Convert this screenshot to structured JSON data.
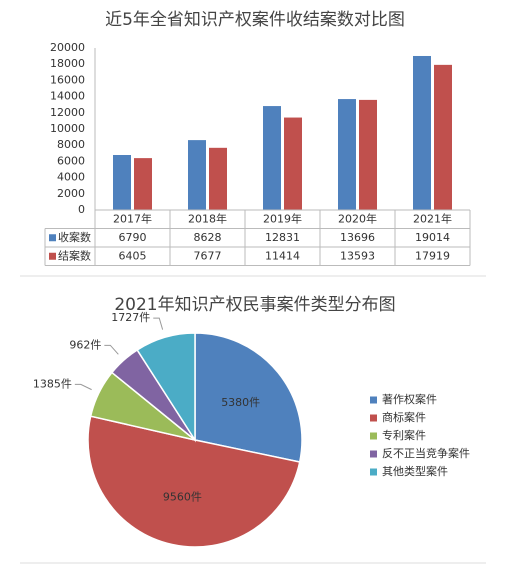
{
  "chart_data": [
    {
      "type": "bar",
      "title": "近5年全省知识产权案件收结案数对比图",
      "categories": [
        "2017年",
        "2018年",
        "2019年",
        "2020年",
        "2021年"
      ],
      "series": [
        {
          "name": "收案数",
          "color": "#4f81bd",
          "values": [
            6790,
            8628,
            12831,
            13696,
            19014
          ]
        },
        {
          "name": "结案数",
          "color": "#c0504d",
          "values": [
            6405,
            7677,
            11414,
            13593,
            17919
          ]
        }
      ],
      "ylim": [
        0,
        20000
      ],
      "yticks": [
        0,
        2000,
        4000,
        6000,
        8000,
        10000,
        12000,
        14000,
        16000,
        18000,
        20000
      ],
      "grid": false,
      "data_table": true
    },
    {
      "type": "pie",
      "title": "2021年知识产权民事案件类型分布图",
      "categories": [
        "著作权案件",
        "商标案件",
        "专利案件",
        "反不正当竞争案件",
        "其他类型案件"
      ],
      "values": [
        5380,
        9560,
        1385,
        962,
        1727
      ],
      "value_labels": [
        "5380件",
        "9560件",
        "1385件",
        "962件",
        "1727件"
      ],
      "colors": [
        "#4f81bd",
        "#c0504d",
        "#9bbb59",
        "#8064a2",
        "#4bacc6"
      ],
      "legend": "right"
    }
  ]
}
